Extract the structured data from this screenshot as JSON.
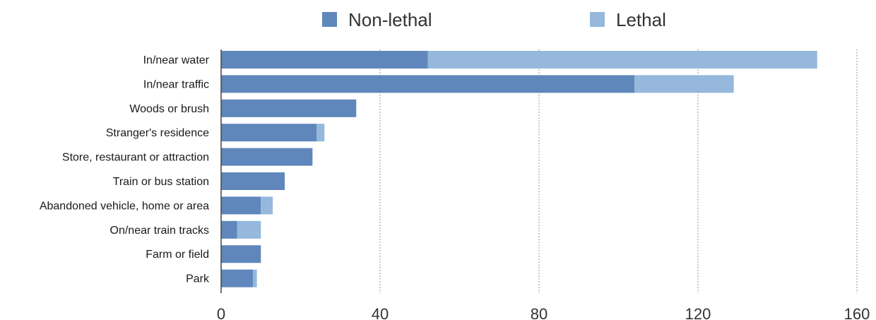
{
  "chart_data": {
    "type": "bar",
    "orientation": "horizontal",
    "stacked": true,
    "categories": [
      "In/near water",
      "In/near traffic",
      "Woods or brush",
      "Stranger's residence",
      "Store, restaurant or attraction",
      "Train or bus station",
      "Abandoned vehicle, home or area",
      "On/near train tracks",
      "Farm or field",
      "Park"
    ],
    "series": [
      {
        "name": "Non-lethal",
        "color": "#5f87bb",
        "values": [
          52,
          104,
          34,
          24,
          23,
          16,
          10,
          4,
          10,
          8
        ]
      },
      {
        "name": "Lethal",
        "color": "#95b8dc",
        "values": [
          98,
          25,
          0,
          2,
          0,
          0,
          3,
          6,
          0,
          1
        ]
      }
    ],
    "xlim": [
      0,
      160
    ],
    "xticks": [
      "0",
      "40",
      "80",
      "120",
      "160"
    ],
    "grid": "vertical dotted",
    "legend_position": "top-center",
    "xlabel": "",
    "ylabel": "",
    "title": ""
  }
}
